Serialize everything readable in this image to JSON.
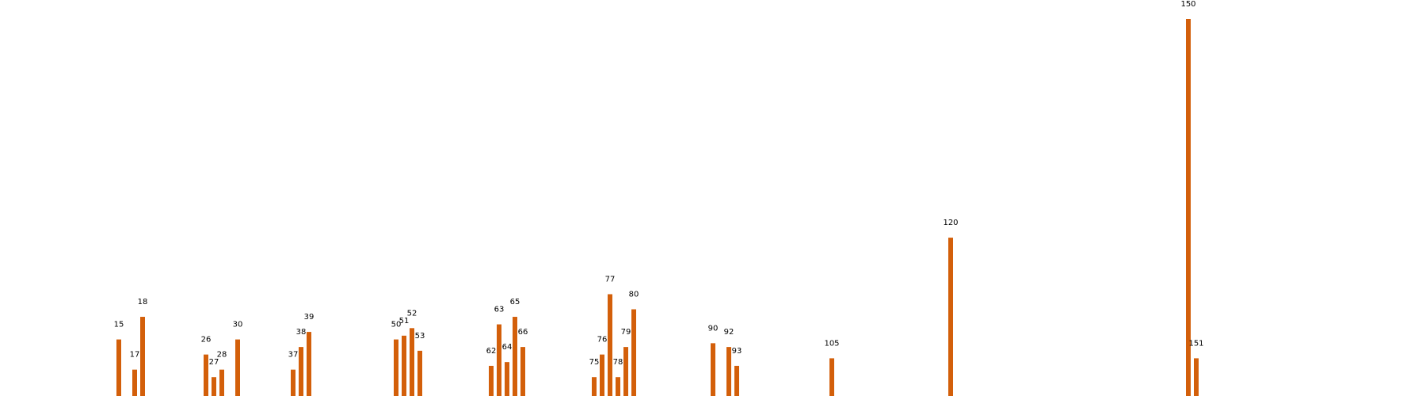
{
  "chart_data": {
    "type": "bar",
    "title": "",
    "xlabel": "",
    "ylabel": "",
    "grid": false,
    "axes_visible": false,
    "bar_color": "#d35f0a",
    "label_color": "#000000",
    "background": "#ffffff",
    "xlim": [
      0,
      180
    ],
    "ylim": [
      0,
      160
    ],
    "x": [
      15,
      17,
      18,
      26,
      27,
      28,
      30,
      37,
      38,
      39,
      50,
      51,
      52,
      53,
      62,
      63,
      64,
      65,
      66,
      75,
      76,
      77,
      78,
      79,
      80,
      90,
      92,
      93,
      105,
      120,
      150,
      151
    ],
    "values": [
      15,
      7,
      21,
      11,
      5,
      7,
      15,
      7,
      13,
      17,
      15,
      16,
      18,
      12,
      8,
      19,
      9,
      21,
      13,
      5,
      11,
      27,
      5,
      13,
      23,
      14,
      13,
      8,
      10,
      42,
      100,
      10
    ],
    "labels": [
      "15",
      "17",
      "18",
      "26",
      "27",
      "28",
      "30",
      "37",
      "38",
      "39",
      "50",
      "51",
      "52",
      "53",
      "62",
      "63",
      "64",
      "65",
      "66",
      "75",
      "76",
      "77",
      "78",
      "79",
      "80",
      "90",
      "92",
      "93",
      "105",
      "120",
      "150",
      "151"
    ]
  }
}
